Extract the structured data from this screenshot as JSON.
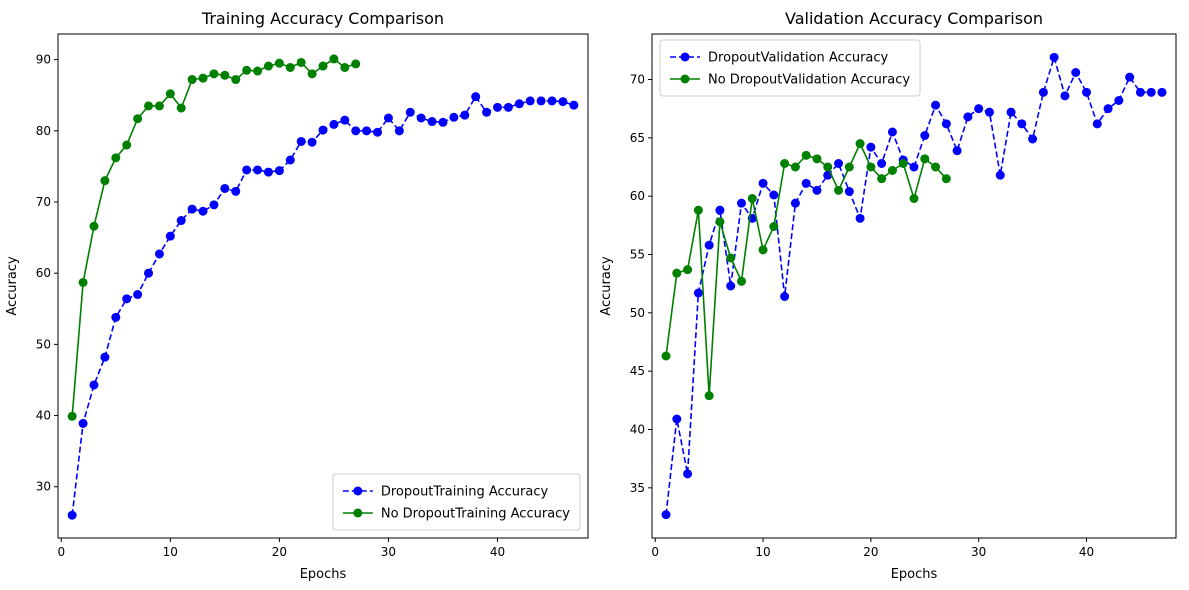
{
  "chart_data": [
    {
      "type": "line",
      "title": "Training Accuracy Comparison",
      "xlabel": "Epochs",
      "ylabel": "Accuracy",
      "xlim": [
        -0.3,
        48.3
      ],
      "ylim": [
        22.8,
        93.6
      ],
      "xticks": [
        0,
        10,
        20,
        30,
        40
      ],
      "yticks": [
        30,
        40,
        50,
        60,
        70,
        80,
        90
      ],
      "grid": false,
      "legend_position": "lower right",
      "series": [
        {
          "name": "DropoutTraining Accuracy",
          "color": "#0000ff",
          "style": "dashed",
          "marker": "circle",
          "x": [
            1,
            2,
            3,
            4,
            5,
            6,
            7,
            8,
            9,
            10,
            11,
            12,
            13,
            14,
            15,
            16,
            17,
            18,
            19,
            20,
            21,
            22,
            23,
            24,
            25,
            26,
            27,
            28,
            29,
            30,
            31,
            32,
            33,
            34,
            35,
            36,
            37,
            38,
            39,
            40,
            41,
            42,
            43,
            44,
            45,
            46,
            47
          ],
          "y": [
            26.0,
            38.9,
            44.3,
            48.2,
            53.8,
            56.4,
            57.0,
            60.0,
            62.7,
            65.2,
            67.4,
            69.0,
            68.7,
            69.6,
            71.9,
            71.5,
            74.5,
            74.5,
            74.2,
            74.4,
            75.9,
            78.5,
            78.4,
            80.1,
            80.9,
            81.5,
            80.0,
            80.0,
            79.8,
            81.8,
            80.0,
            82.6,
            81.8,
            81.3,
            81.2,
            81.9,
            82.2,
            84.8,
            82.6,
            83.3,
            83.3,
            83.8,
            84.2,
            84.2,
            84.2,
            84.1,
            83.6
          ]
        },
        {
          "name": "No DropoutTraining Accuracy",
          "color": "#008000",
          "style": "solid",
          "marker": "circle",
          "x": [
            1,
            2,
            3,
            4,
            5,
            6,
            7,
            8,
            9,
            10,
            11,
            12,
            13,
            14,
            15,
            16,
            17,
            18,
            19,
            20,
            21,
            22,
            23,
            24,
            25,
            26,
            27
          ],
          "y": [
            39.9,
            58.7,
            66.6,
            73.0,
            76.2,
            78.0,
            81.7,
            83.5,
            83.5,
            85.2,
            83.2,
            87.2,
            87.4,
            88.0,
            87.8,
            87.2,
            88.5,
            88.4,
            89.1,
            89.5,
            88.9,
            89.6,
            88.0,
            89.1,
            90.1,
            88.9,
            89.4
          ]
        }
      ]
    },
    {
      "type": "line",
      "title": "Validation Accuracy Comparison",
      "xlabel": "Epochs",
      "ylabel": "Accuracy",
      "xlim": [
        -0.3,
        48.3
      ],
      "ylim": [
        30.7,
        73.9
      ],
      "xticks": [
        0,
        10,
        20,
        30,
        40
      ],
      "yticks": [
        35,
        40,
        45,
        50,
        55,
        60,
        65,
        70
      ],
      "grid": false,
      "legend_position": "upper left",
      "series": [
        {
          "name": "DropoutValidation Accuracy",
          "color": "#0000ff",
          "style": "dashed",
          "marker": "circle",
          "x": [
            1,
            2,
            3,
            4,
            5,
            6,
            7,
            8,
            9,
            10,
            11,
            12,
            13,
            14,
            15,
            16,
            17,
            18,
            19,
            20,
            21,
            22,
            23,
            24,
            25,
            26,
            27,
            28,
            29,
            30,
            31,
            32,
            33,
            34,
            35,
            36,
            37,
            38,
            39,
            40,
            41,
            42,
            43,
            44,
            45,
            46,
            47
          ],
          "y": [
            32.7,
            40.9,
            36.2,
            51.7,
            55.8,
            58.8,
            52.3,
            59.4,
            58.1,
            61.1,
            60.1,
            51.4,
            59.4,
            61.1,
            60.5,
            61.8,
            62.8,
            60.4,
            58.1,
            64.2,
            62.8,
            65.5,
            63.1,
            62.5,
            65.2,
            67.8,
            66.2,
            63.9,
            66.8,
            67.5,
            67.2,
            61.8,
            67.2,
            66.2,
            64.9,
            68.9,
            71.9,
            68.6,
            70.6,
            68.9,
            66.2,
            67.5,
            68.2,
            70.2,
            68.9,
            68.9,
            68.9
          ]
        },
        {
          "name": "No DropoutValidation Accuracy",
          "color": "#008000",
          "style": "solid",
          "marker": "circle",
          "x": [
            1,
            2,
            3,
            4,
            5,
            6,
            7,
            8,
            9,
            10,
            11,
            12,
            13,
            14,
            15,
            16,
            17,
            18,
            19,
            20,
            21,
            22,
            23,
            24,
            25,
            26,
            27
          ],
          "y": [
            46.3,
            53.4,
            53.7,
            58.8,
            42.9,
            57.8,
            54.7,
            52.7,
            59.8,
            55.4,
            57.4,
            62.8,
            62.5,
            63.5,
            63.2,
            62.5,
            60.5,
            62.5,
            64.5,
            62.5,
            61.5,
            62.2,
            62.8,
            59.8,
            63.2,
            62.5,
            61.5
          ]
        }
      ]
    }
  ]
}
